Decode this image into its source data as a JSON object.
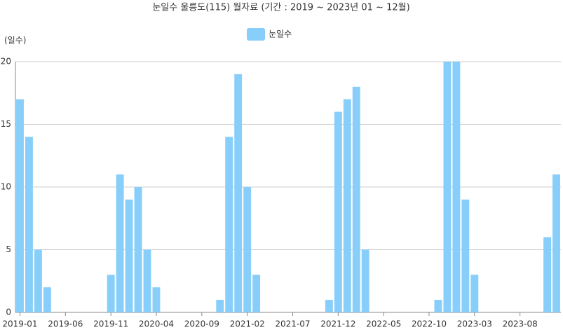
{
  "chart_data": {
    "type": "bar",
    "title": "눈일수 울릉도(115) 월자료 (기간 : 2019 ~ 2023년  01 ~ 12월)",
    "y_label": "(일수)",
    "categories": [
      "2019-01",
      null,
      null,
      null,
      null,
      "2019-06",
      null,
      null,
      null,
      null,
      "2019-11",
      null,
      null,
      null,
      null,
      "2020-04",
      null,
      null,
      null,
      null,
      "2020-09",
      null,
      null,
      null,
      null,
      "2021-02",
      null,
      null,
      null,
      null,
      "2021-07",
      null,
      null,
      null,
      null,
      "2021-12",
      null,
      null,
      null,
      null,
      "2022-05",
      null,
      null,
      null,
      null,
      "2022-10",
      null,
      null,
      null,
      null,
      "2023-03",
      null,
      null,
      null,
      null,
      "2023-08",
      null,
      null,
      null,
      null
    ],
    "series": [
      {
        "name": "눈일수",
        "color": "#87cefa",
        "values": [
          17,
          14,
          5,
          2,
          0,
          0,
          0,
          0,
          0,
          0,
          3,
          11,
          9,
          10,
          5,
          2,
          0,
          0,
          0,
          0,
          0,
          0,
          1,
          14,
          19,
          10,
          3,
          0,
          0,
          0,
          0,
          0,
          0,
          0,
          1,
          16,
          17,
          18,
          5,
          0,
          0,
          0,
          0,
          0,
          0,
          0,
          1,
          20,
          20,
          9,
          3,
          0,
          0,
          0,
          0,
          0,
          0,
          0,
          6,
          11
        ]
      }
    ],
    "ylim": [
      0,
      20
    ],
    "yticks": [
      0,
      5,
      10,
      15,
      20
    ],
    "grid": true
  }
}
